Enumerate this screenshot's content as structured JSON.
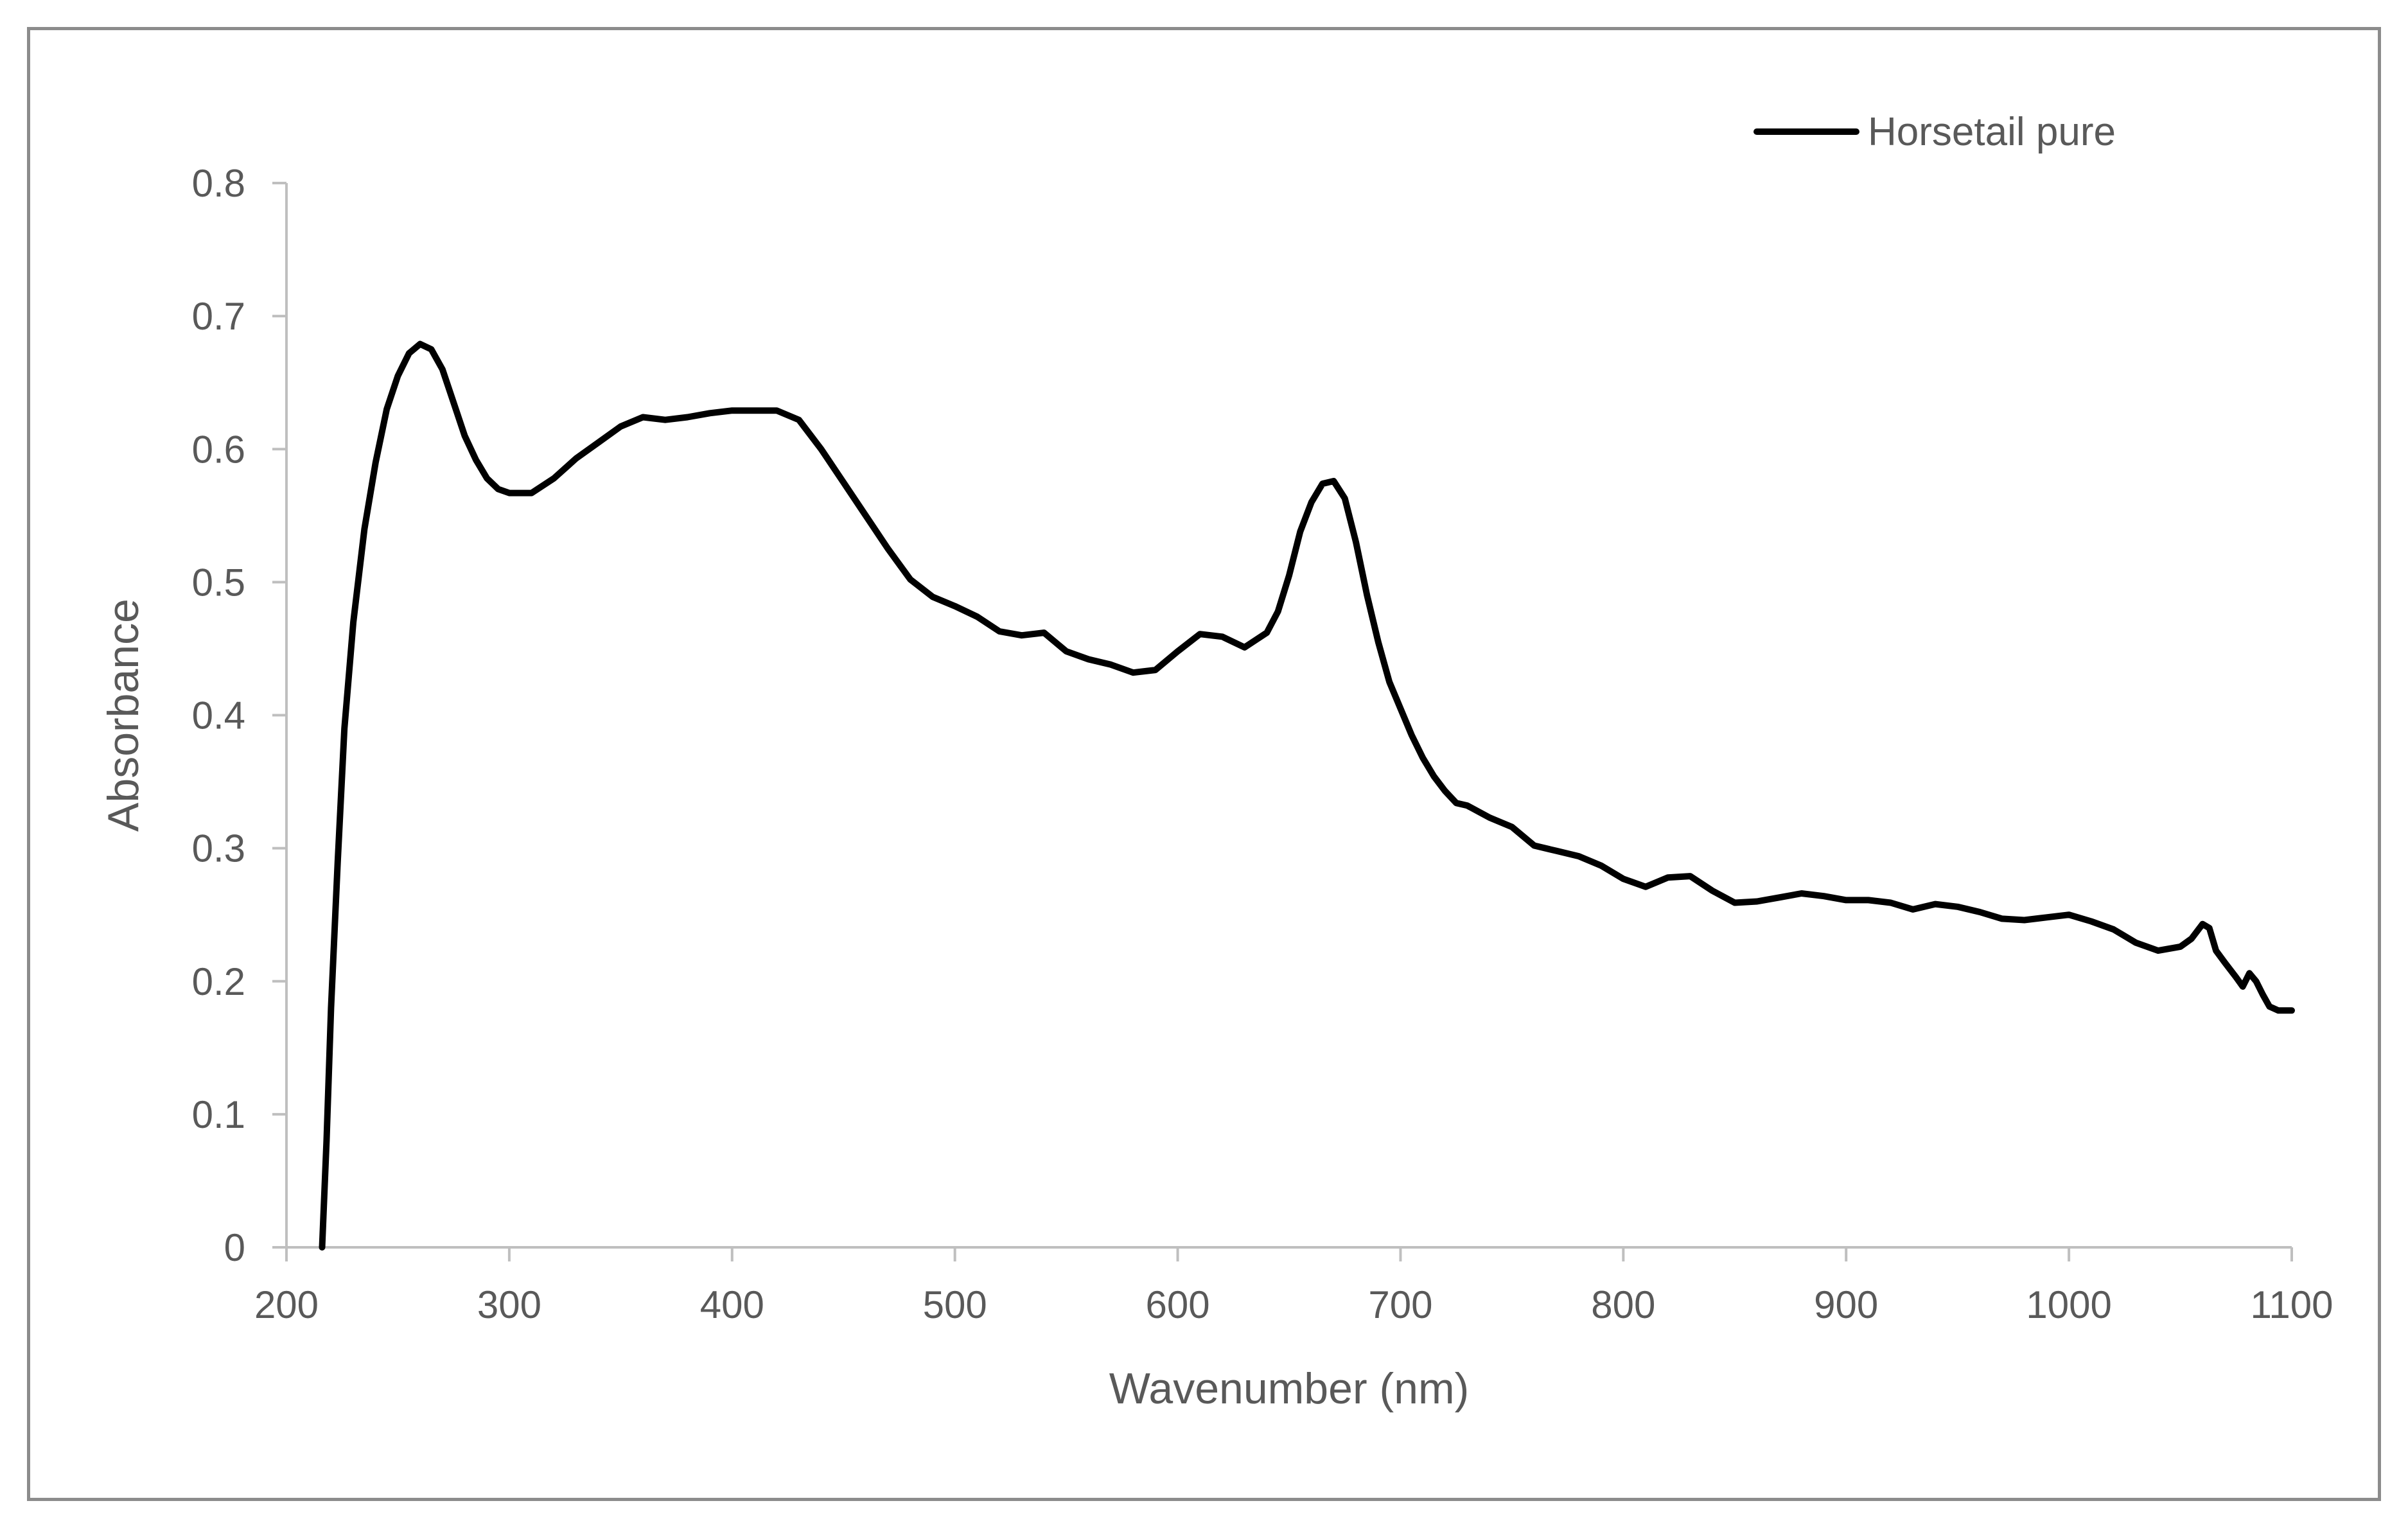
{
  "chart_data": {
    "type": "line",
    "title": "",
    "xlabel": "Wavenumber (nm)",
    "ylabel": "Absorbance",
    "xlim": [
      200,
      1100
    ],
    "ylim": [
      0,
      0.8
    ],
    "x_ticks": [
      200,
      300,
      400,
      500,
      600,
      700,
      800,
      900,
      1000,
      1100
    ],
    "y_ticks": [
      0,
      0.1,
      0.2,
      0.3,
      0.4,
      0.5,
      0.6,
      0.7,
      0.8
    ],
    "x_tick_labels": [
      "200",
      "300",
      "400",
      "500",
      "600",
      "700",
      "800",
      "900",
      "1000",
      "1100"
    ],
    "y_tick_labels": [
      "0",
      "0.1",
      "0.2",
      "0.3",
      "0.4",
      "0.5",
      "0.6",
      "0.7",
      "0.8"
    ],
    "grid": false,
    "legend_position": "top-right",
    "series": [
      {
        "name": "Horsetail pure",
        "color": "#000000",
        "points": [
          [
            216,
            0.0
          ],
          [
            218,
            0.08
          ],
          [
            220,
            0.18
          ],
          [
            223,
            0.29
          ],
          [
            226,
            0.39
          ],
          [
            230,
            0.47
          ],
          [
            235,
            0.54
          ],
          [
            240,
            0.59
          ],
          [
            245,
            0.63
          ],
          [
            250,
            0.655
          ],
          [
            255,
            0.672
          ],
          [
            260,
            0.679
          ],
          [
            265,
            0.675
          ],
          [
            270,
            0.66
          ],
          [
            275,
            0.635
          ],
          [
            280,
            0.61
          ],
          [
            285,
            0.592
          ],
          [
            290,
            0.578
          ],
          [
            295,
            0.57
          ],
          [
            300,
            0.567
          ],
          [
            310,
            0.567
          ],
          [
            320,
            0.578
          ],
          [
            330,
            0.593
          ],
          [
            340,
            0.605
          ],
          [
            350,
            0.617
          ],
          [
            360,
            0.624
          ],
          [
            370,
            0.622
          ],
          [
            380,
            0.624
          ],
          [
            390,
            0.627
          ],
          [
            400,
            0.629
          ],
          [
            410,
            0.629
          ],
          [
            420,
            0.629
          ],
          [
            430,
            0.622
          ],
          [
            440,
            0.6
          ],
          [
            450,
            0.575
          ],
          [
            460,
            0.55
          ],
          [
            470,
            0.525
          ],
          [
            480,
            0.502
          ],
          [
            490,
            0.489
          ],
          [
            500,
            0.482
          ],
          [
            510,
            0.474
          ],
          [
            520,
            0.463
          ],
          [
            530,
            0.46
          ],
          [
            540,
            0.462
          ],
          [
            550,
            0.448
          ],
          [
            560,
            0.442
          ],
          [
            570,
            0.438
          ],
          [
            580,
            0.432
          ],
          [
            590,
            0.434
          ],
          [
            600,
            0.448
          ],
          [
            610,
            0.461
          ],
          [
            620,
            0.459
          ],
          [
            630,
            0.451
          ],
          [
            640,
            0.462
          ],
          [
            645,
            0.478
          ],
          [
            650,
            0.505
          ],
          [
            655,
            0.538
          ],
          [
            660,
            0.56
          ],
          [
            665,
            0.574
          ],
          [
            670,
            0.576
          ],
          [
            675,
            0.563
          ],
          [
            680,
            0.53
          ],
          [
            685,
            0.49
          ],
          [
            690,
            0.455
          ],
          [
            695,
            0.425
          ],
          [
            700,
            0.405
          ],
          [
            705,
            0.385
          ],
          [
            710,
            0.368
          ],
          [
            715,
            0.354
          ],
          [
            720,
            0.343
          ],
          [
            725,
            0.334
          ],
          [
            730,
            0.332
          ],
          [
            740,
            0.323
          ],
          [
            750,
            0.316
          ],
          [
            760,
            0.302
          ],
          [
            770,
            0.298
          ],
          [
            780,
            0.294
          ],
          [
            790,
            0.287
          ],
          [
            800,
            0.277
          ],
          [
            810,
            0.271
          ],
          [
            820,
            0.278
          ],
          [
            830,
            0.279
          ],
          [
            840,
            0.268
          ],
          [
            850,
            0.259
          ],
          [
            860,
            0.26
          ],
          [
            870,
            0.263
          ],
          [
            880,
            0.266
          ],
          [
            890,
            0.264
          ],
          [
            900,
            0.261
          ],
          [
            910,
            0.261
          ],
          [
            920,
            0.259
          ],
          [
            930,
            0.254
          ],
          [
            940,
            0.258
          ],
          [
            950,
            0.256
          ],
          [
            960,
            0.252
          ],
          [
            970,
            0.247
          ],
          [
            980,
            0.246
          ],
          [
            990,
            0.248
          ],
          [
            1000,
            0.25
          ],
          [
            1010,
            0.245
          ],
          [
            1020,
            0.239
          ],
          [
            1030,
            0.229
          ],
          [
            1040,
            0.223
          ],
          [
            1050,
            0.226
          ],
          [
            1055,
            0.232
          ],
          [
            1060,
            0.243
          ],
          [
            1063,
            0.24
          ],
          [
            1066,
            0.223
          ],
          [
            1070,
            0.214
          ],
          [
            1075,
            0.203
          ],
          [
            1078,
            0.196
          ],
          [
            1081,
            0.206
          ],
          [
            1084,
            0.2
          ],
          [
            1087,
            0.19
          ],
          [
            1090,
            0.181
          ],
          [
            1094,
            0.178
          ],
          [
            1100,
            0.178
          ]
        ]
      }
    ]
  }
}
